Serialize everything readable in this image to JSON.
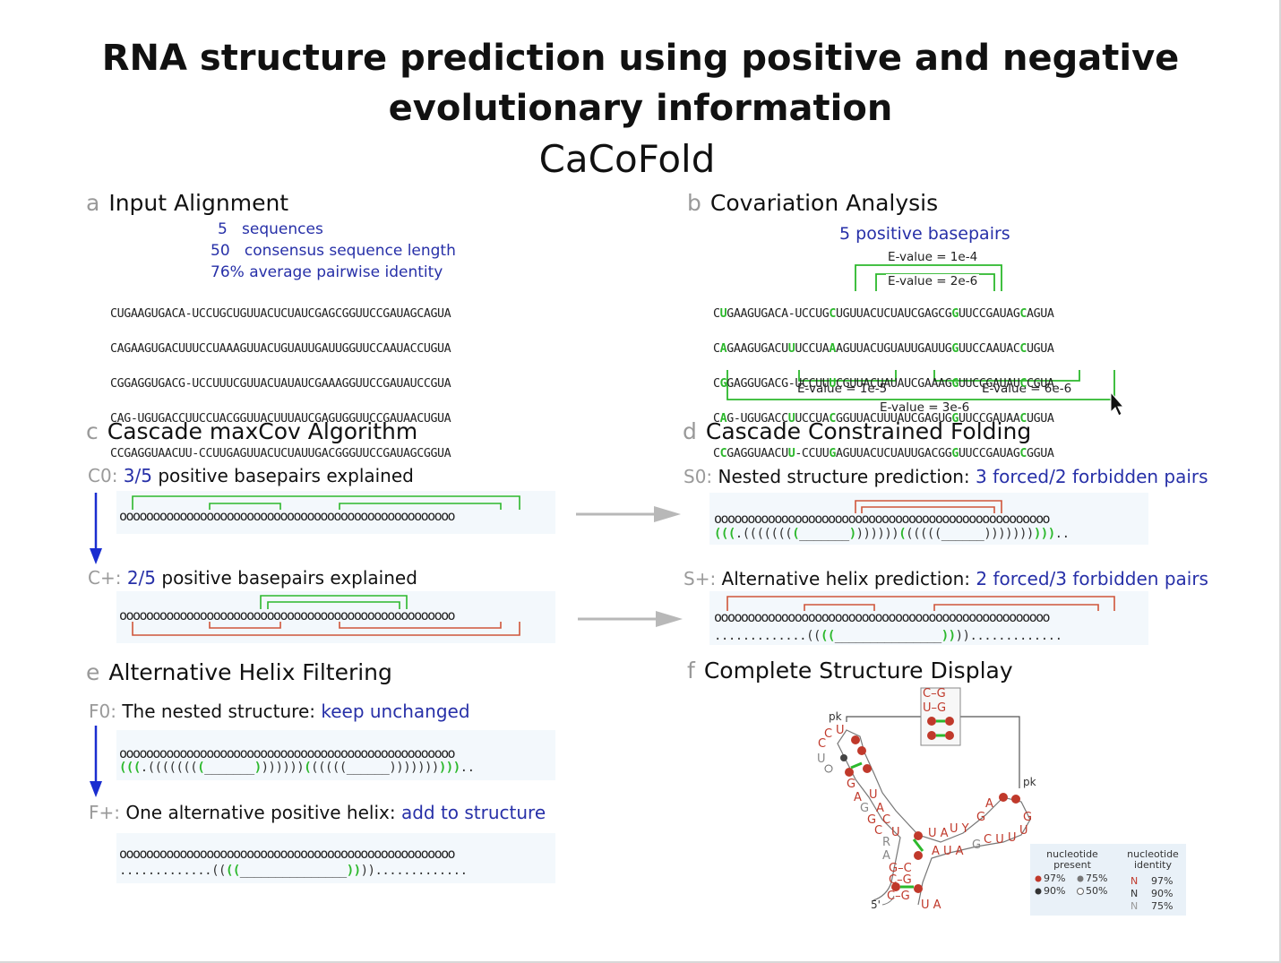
{
  "title_line1": "RNA structure prediction using positive and negative",
  "title_line2": "evolutionary information",
  "subtitle": "CaCoFold",
  "panel_a": {
    "letter": "a",
    "heading": "Input Alignment",
    "stats": [
      {
        "num": "5",
        "text": "sequences"
      },
      {
        "num": "50",
        "text": "consensus sequence length"
      },
      {
        "num": "76%",
        "text": "average pairwise identity"
      }
    ],
    "sequences": [
      "CUGAAGUGACA-UCCUGCUGUUACUCUAUCGAGCGGUUCCGAUAGCAGUA",
      "CAGAAGUGACUUUCCUAAAGUUACUGUAUUGAUUGGUUCCAAUACCUGUA",
      "CGGAGGUGACG-UCCUUUCGUUACUAUAUCGAAAGGUUCCGAUAUCCGUA",
      "CAG-UGUGACCUUCCUACGGUUACUUUAUCGAGUGGUUCCGAUAACUGUA",
      "CCGAGGUAACUU-CCUUGAGUUACUCUAUUGACGGGUUCCGAUAGCGGUA"
    ]
  },
  "panel_b": {
    "letter": "b",
    "heading": "Covariation Analysis",
    "positive": "5 positive basepairs",
    "evalues_top": [
      "E-value = 1e-4",
      "E-value = 2e-6"
    ],
    "evalues_bottom": [
      "E-value = 1e-5",
      "E-value = 6e-6",
      "E-value = 3e-6"
    ],
    "sequences": [
      "CUGAAGUGACA-UCCUGCUGUUACUCUAUCGAGCGGUUCCGAUAGCAGUA",
      "CAGAAGUGACUUUCCUAAAGUUACUGUAUUGAUUGGUUCCAAUACCUGUA",
      "CGGAGGUGACG-UCCUUUCGUUACUAUAUCGAAAGGUUCCGAUAUCCGUA",
      "CAG-UGUGACCUUCCUACGGUUACUUUAUCGAGUGGUUCCGAUAACUGUA",
      "CCGAGGUAACUU-CCUUGAGUUACUCUAUUGACGGGUUCCGAUAGCGGUA"
    ]
  },
  "panel_c": {
    "letter": "c",
    "heading": "Cascade maxCov Algorithm",
    "c0_tag": "C0:",
    "c0_frac": "3/5",
    "c0_text": " positive basepairs explained",
    "cp_tag": "C+:",
    "cp_frac": "2/5",
    "cp_text": " positive basepairs explained"
  },
  "panel_d": {
    "letter": "d",
    "heading": "Cascade Constrained Folding",
    "s0_tag": "S0:",
    "s0_text": " Nested structure prediction: ",
    "s0_blue": "3 forced/2 forbidden pairs",
    "sp_tag": "S+:",
    "sp_text": " Alternative helix prediction: ",
    "sp_blue": "2 forced/3 forbidden pairs",
    "s0_db": "(((.((((((((_______))))))((((((______))))))))..",
    "sp_db": ".............((((_______________))))............."
  },
  "panel_e": {
    "letter": "e",
    "heading": "Alternative Helix Filtering",
    "f0_tag": "F0:",
    "f0_text": "  The nested structure: ",
    "f0_blue": "keep unchanged",
    "fp_tag": "F+:",
    "fp_text": " One alternative positive helix: ",
    "fp_blue": "add to structure"
  },
  "panel_f": {
    "letter": "f",
    "heading": "Complete Structure Display",
    "pk_labels": [
      "pk",
      "pk"
    ],
    "five_prime": "5'",
    "legend": {
      "present_title": "nucleotide present",
      "identity_title": "nucleotide identity",
      "present_items": [
        "97%",
        "75%",
        "90%",
        "50%"
      ],
      "identity_items": [
        "97%",
        "90%",
        "75%"
      ],
      "identity_letter": "N"
    },
    "colors": {
      "red": "#c0392b",
      "green": "#2cb82c",
      "blue": "#2730a8"
    }
  }
}
